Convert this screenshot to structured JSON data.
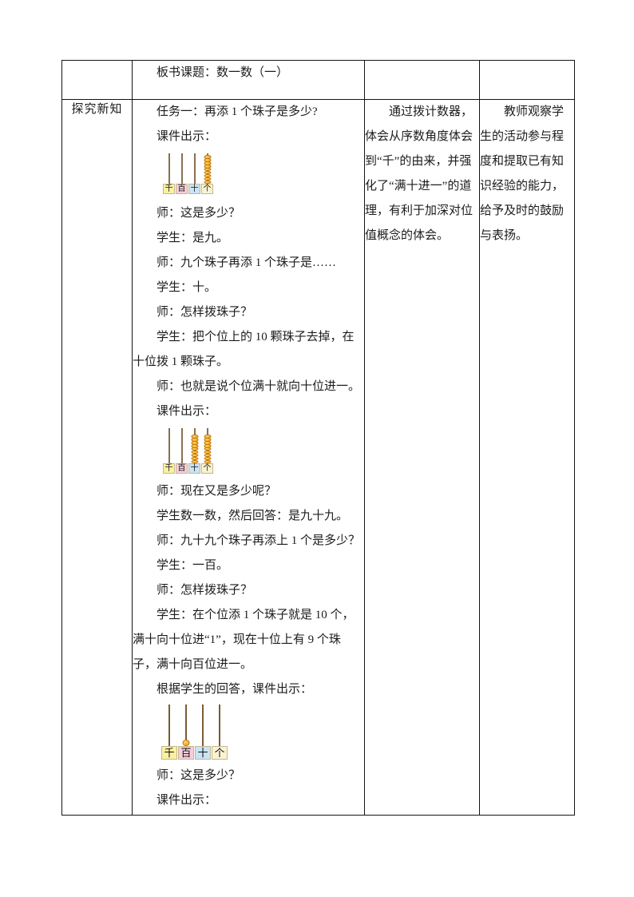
{
  "table": {
    "row1": {
      "board_topic": "板书课题：数一数（一）"
    },
    "row2": {
      "stage_label": "探究新知",
      "col2_blocks": [
        {
          "type": "p",
          "text": "任务一：再添 1 个珠子是多少?"
        },
        {
          "type": "p",
          "text": "课件出示："
        },
        {
          "type": "abacus",
          "abacus": "abacus1"
        },
        {
          "type": "p",
          "text": "师：这是多少？"
        },
        {
          "type": "p",
          "text": "学生：是九。"
        },
        {
          "type": "p",
          "text": "师：九个珠子再添 1 个珠子是……"
        },
        {
          "type": "p",
          "text": "学生：十。"
        },
        {
          "type": "p",
          "text": "师：怎样拨珠子？"
        },
        {
          "type": "p",
          "text": "学生：把个位上的 10 颗珠子去掉，在十位拨 1 颗珠子。"
        },
        {
          "type": "p",
          "text": "师：也就是说个位满十就向十位进一。"
        },
        {
          "type": "p",
          "text": "课件出示："
        },
        {
          "type": "abacus",
          "abacus": "abacus2"
        },
        {
          "type": "p",
          "text": "师：现在又是多少呢？"
        },
        {
          "type": "p",
          "text": "学生数一数，然后回答：是九十九。"
        },
        {
          "type": "p",
          "text": "师：九十九个珠子再添上 1 个是多少？"
        },
        {
          "type": "p",
          "text": "学生：一百。"
        },
        {
          "type": "p",
          "text": "师：怎样拨珠子？"
        },
        {
          "type": "p",
          "text": "学生：在个位添 1 个珠子就是 10 个，满十向十位进“1”，现在十位上有 9 个珠子，满十向百位进一。"
        },
        {
          "type": "p",
          "text": "根据学生的回答，课件出示："
        },
        {
          "type": "abacus",
          "abacus": "abacus3"
        },
        {
          "type": "p",
          "text": "师：这是多少？"
        },
        {
          "type": "p",
          "text": "课件出示："
        }
      ],
      "design_intent": "通过拨计数器，体会从序数角度体会到“千”的由来，并强化了“满十进一”的道理，有利于加深对位值概念的体会。",
      "evaluation": "教师观察学生的活动参与程度和提取已有知识经验的能力，给予及时的鼓励与表扬。"
    }
  },
  "abacuses": {
    "abacus1": {
      "size": "small",
      "labels": [
        "千",
        "百",
        "十",
        "个"
      ],
      "label_colors": [
        "#FAF0A0",
        "#F8CEDA",
        "#C9E4F4",
        "#FAF3D2"
      ],
      "beads": [
        0,
        0,
        0,
        9
      ],
      "bead_color": "#F2A018",
      "bead_highlight": "#FFD35C",
      "bead_border": "#C07A10",
      "rod_color": "#8A6F52"
    },
    "abacus2": {
      "size": "small2",
      "labels": [
        "千",
        "百",
        "十",
        "个"
      ],
      "label_colors": [
        "#FAF0A0",
        "#F8CEDA",
        "#C9E4F4",
        "#FAF3D2"
      ],
      "beads": [
        0,
        0,
        9,
        9
      ],
      "bead_color": "#F2A018",
      "bead_highlight": "#FFD35C",
      "bead_border": "#C07A10",
      "rod_color": "#8A6F52"
    },
    "abacus3": {
      "size": "large",
      "labels": [
        "千",
        "百",
        "十",
        "个"
      ],
      "label_colors": [
        "#FAF0A0",
        "#F8CEDA",
        "#C9E4F4",
        "#FAF3D2"
      ],
      "beads": [
        0,
        1,
        0,
        0
      ],
      "bead_color": "#F2A018",
      "bead_highlight": "#FFD35C",
      "bead_border": "#C07A10",
      "rod_color": "#7B5A36"
    }
  }
}
